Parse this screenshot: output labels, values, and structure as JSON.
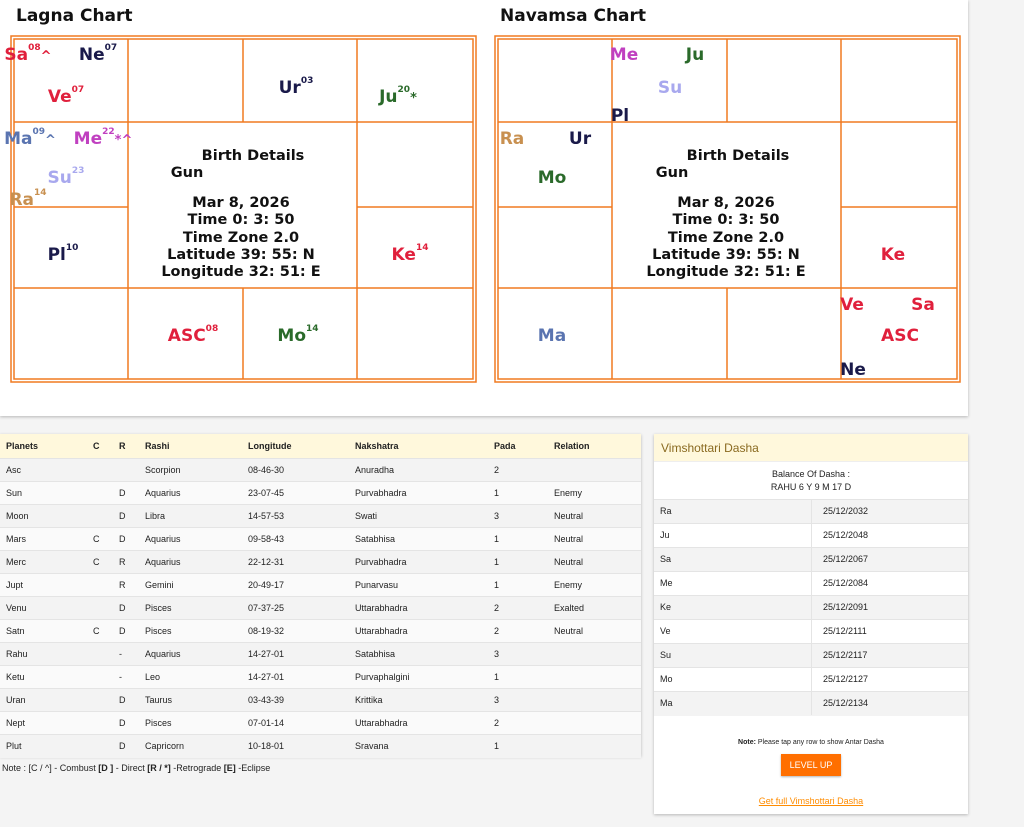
{
  "lagna": {
    "title": "Lagna Chart",
    "planets": [
      {
        "label": "Sa",
        "degree": "08",
        "mark": "^",
        "color": "#e0203c"
      },
      {
        "label": "Ne",
        "degree": "07",
        "color": "#1a1a4a"
      },
      {
        "label": "Ve",
        "degree": "07",
        "color": "#e0203c"
      },
      {
        "label": "Ur",
        "degree": "03",
        "color": "#1a1a4a"
      },
      {
        "label": "Ju",
        "degree": "20",
        "mark": "*",
        "color": "#2a6a2a"
      },
      {
        "label": "Ma",
        "degree": "09",
        "mark": "^",
        "color": "#5a74b0"
      },
      {
        "label": "Me",
        "degree": "22",
        "mark": "*^",
        "color": "#c040c0"
      },
      {
        "label": "Su",
        "degree": "23",
        "color": "#a8a8ee"
      },
      {
        "label": "Ra",
        "degree": "14",
        "color": "#c89050"
      },
      {
        "label": "Pl",
        "degree": "10",
        "color": "#1a1a4a"
      },
      {
        "label": "Ke",
        "degree": "14",
        "color": "#e0203c"
      },
      {
        "label": "ASC",
        "degree": "08",
        "color": "#e0203c"
      },
      {
        "label": "Mo",
        "degree": "14",
        "color": "#2a6a2a"
      }
    ],
    "details": {
      "heading": "Birth Details",
      "gun": "Gun",
      "date": "Mar 8, 2026",
      "time": "Time 0: 3: 50",
      "timezone": "Time Zone 2.0",
      "latitude": "Latitude 39: 55: N",
      "longitude": "Longitude 32: 51: E"
    }
  },
  "navamsa": {
    "title": "Navamsa Chart",
    "planets": [
      {
        "label": "Me",
        "color": "#c040c0"
      },
      {
        "label": "Ju",
        "color": "#2a6a2a"
      },
      {
        "label": "Su",
        "color": "#a8a8ee"
      },
      {
        "label": "Pl",
        "color": "#1a1a4a"
      },
      {
        "label": "Ra",
        "color": "#c89050"
      },
      {
        "label": "Ur",
        "color": "#1a1a4a"
      },
      {
        "label": "Mo",
        "color": "#2a6a2a"
      },
      {
        "label": "Ke",
        "color": "#e0203c"
      },
      {
        "label": "Ve",
        "color": "#e0203c"
      },
      {
        "label": "Sa",
        "color": "#e0203c"
      },
      {
        "label": "ASC",
        "color": "#e0203c"
      },
      {
        "label": "Ma",
        "color": "#5a74b0"
      },
      {
        "label": "Ne",
        "color": "#1a1a4a"
      }
    ],
    "details": {
      "heading": "Birth Details",
      "gun": "Gun",
      "date": "Mar 8, 2026",
      "time": "Time 0: 3: 50",
      "timezone": "Time Zone 2.0",
      "latitude": "Latitude 39: 55: N",
      "longitude": "Longitude 32: 51: E"
    }
  },
  "table": {
    "headers": [
      "Planets",
      "C",
      "R",
      "Rashi",
      "Longitude",
      "Nakshatra",
      "Pada",
      "Relation"
    ],
    "rows": [
      [
        "Asc",
        null,
        null,
        "Scorpion",
        "08-46-30",
        "Anuradha",
        2,
        null
      ],
      [
        "Sun",
        null,
        "D",
        "Aquarius",
        "23-07-45",
        "Purvabhadra",
        1,
        "Enemy"
      ],
      [
        "Moon",
        null,
        "D",
        "Libra",
        "14-57-53",
        "Swati",
        3,
        "Neutral"
      ],
      [
        "Mars",
        "C",
        "D",
        "Aquarius",
        "09-58-43",
        "Satabhisa",
        1,
        "Neutral"
      ],
      [
        "Merc",
        "C",
        "R",
        "Aquarius",
        "22-12-31",
        "Purvabhadra",
        1,
        "Neutral"
      ],
      [
        "Jupt",
        null,
        "R",
        "Gemini",
        "20-49-17",
        "Punarvasu",
        1,
        "Enemy"
      ],
      [
        "Venu",
        null,
        "D",
        "Pisces",
        "07-37-25",
        "Uttarabhadra",
        2,
        "Exalted"
      ],
      [
        "Satn",
        "C",
        "D",
        "Pisces",
        "08-19-32",
        "Uttarabhadra",
        2,
        "Neutral"
      ],
      [
        "Rahu",
        null,
        "-",
        "Aquarius",
        "14-27-01",
        "Satabhisa",
        3,
        null
      ],
      [
        "Ketu",
        null,
        "-",
        "Leo",
        "14-27-01",
        "Purvaphalgini",
        1,
        null
      ],
      [
        "Uran",
        null,
        "D",
        "Taurus",
        "03-43-39",
        "Krittika",
        3,
        null
      ],
      [
        "Nept",
        null,
        "D",
        "Pisces",
        "07-01-14",
        "Uttarabhadra",
        2,
        null
      ],
      [
        "Plut",
        null,
        "D",
        "Capricorn",
        "10-18-01",
        "Sravana",
        1,
        null
      ]
    ]
  },
  "footnote": [
    {
      "text": "Note : [C / ^] - Combust ",
      "bold": false
    },
    {
      "text": "[D ]",
      "bold": true
    },
    {
      "text": " - Direct ",
      "bold": false
    },
    {
      "text": "[R / *]",
      "bold": true
    },
    {
      "text": " -Retrograde  ",
      "bold": false
    },
    {
      "text": "[E]",
      "bold": true
    },
    {
      "text": " -Eclipse",
      "bold": false
    }
  ],
  "dasha": {
    "title": "Vimshottari Dasha",
    "balance_label": "Balance Of Dasha :",
    "balance": "RAHU 6 Y 9 M 17 D",
    "rows": [
      [
        "Ra",
        "25/12/2032"
      ],
      [
        "Ju",
        "25/12/2048"
      ],
      [
        "Sa",
        "25/12/2067"
      ],
      [
        "Me",
        "25/12/2084"
      ],
      [
        "Ke",
        "25/12/2091"
      ],
      [
        "Ve",
        "25/12/2111"
      ],
      [
        "Su",
        "25/12/2117"
      ],
      [
        "Mo",
        "25/12/2127"
      ],
      [
        "Ma",
        "25/12/2134"
      ]
    ],
    "note_label": "Note:",
    "note": "Please tap any row to show Antar Dasha",
    "button": "LEVEL UP",
    "link": "Get full Vimshottari Dasha"
  }
}
